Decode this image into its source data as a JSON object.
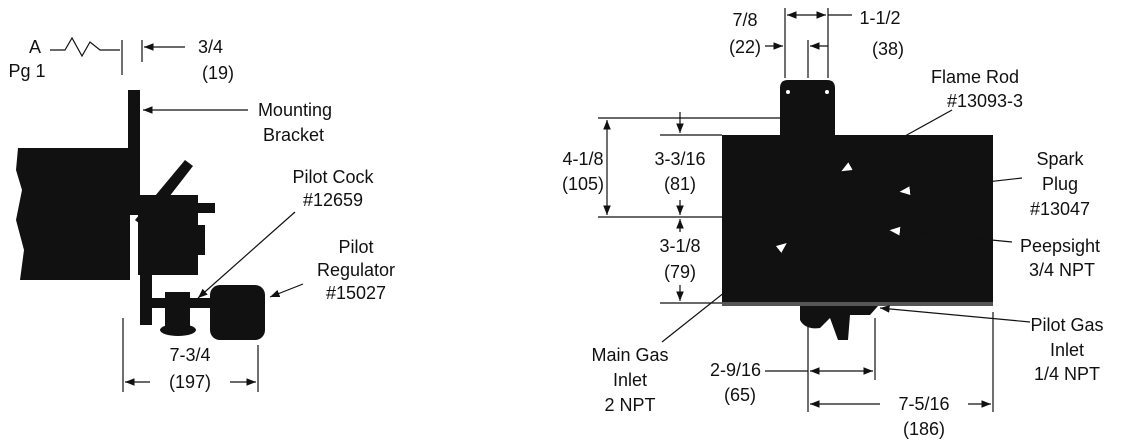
{
  "left_view": {
    "reference": {
      "letter": "A",
      "page": "Pg 1"
    },
    "bracket_offset": {
      "inches": "3/4",
      "mm": "(19)"
    },
    "mounting_bracket": [
      "Mounting",
      "Bracket"
    ],
    "pilot_cock": [
      "Pilot Cock",
      "#12659"
    ],
    "pilot_regulator": [
      "Pilot",
      "Regulator",
      "#15027"
    ],
    "overall_width": {
      "inches": "7-3/4",
      "mm": "(197)"
    }
  },
  "right_view": {
    "tab_width_small": {
      "inches": "7/8",
      "mm": "(22)"
    },
    "tab_width": {
      "inches": "1-1/2",
      "mm": "(38)"
    },
    "flame_rod": [
      "Flame Rod",
      "#13093-3"
    ],
    "upper_height": {
      "inches": "4-1/8",
      "mm": "(105)"
    },
    "body_upper": {
      "inches": "3-3/16",
      "mm": "(81)"
    },
    "spark_plug": [
      "Spark",
      "Plug",
      "#13047"
    ],
    "body_lower": {
      "inches": "3-1/8",
      "mm": "(79)"
    },
    "peepsight": [
      "Peepsight",
      "3/4 NPT"
    ],
    "main_gas_inlet": [
      "Main Gas",
      "Inlet",
      "2 NPT"
    ],
    "pilot_spacing": {
      "inches": "2-9/16",
      "mm": "(65)"
    },
    "pilot_gas_inlet": [
      "Pilot Gas",
      "Inlet",
      "1/4 NPT"
    ],
    "pilot_offset": {
      "inches": "7-5/16",
      "mm": "(186)"
    }
  }
}
